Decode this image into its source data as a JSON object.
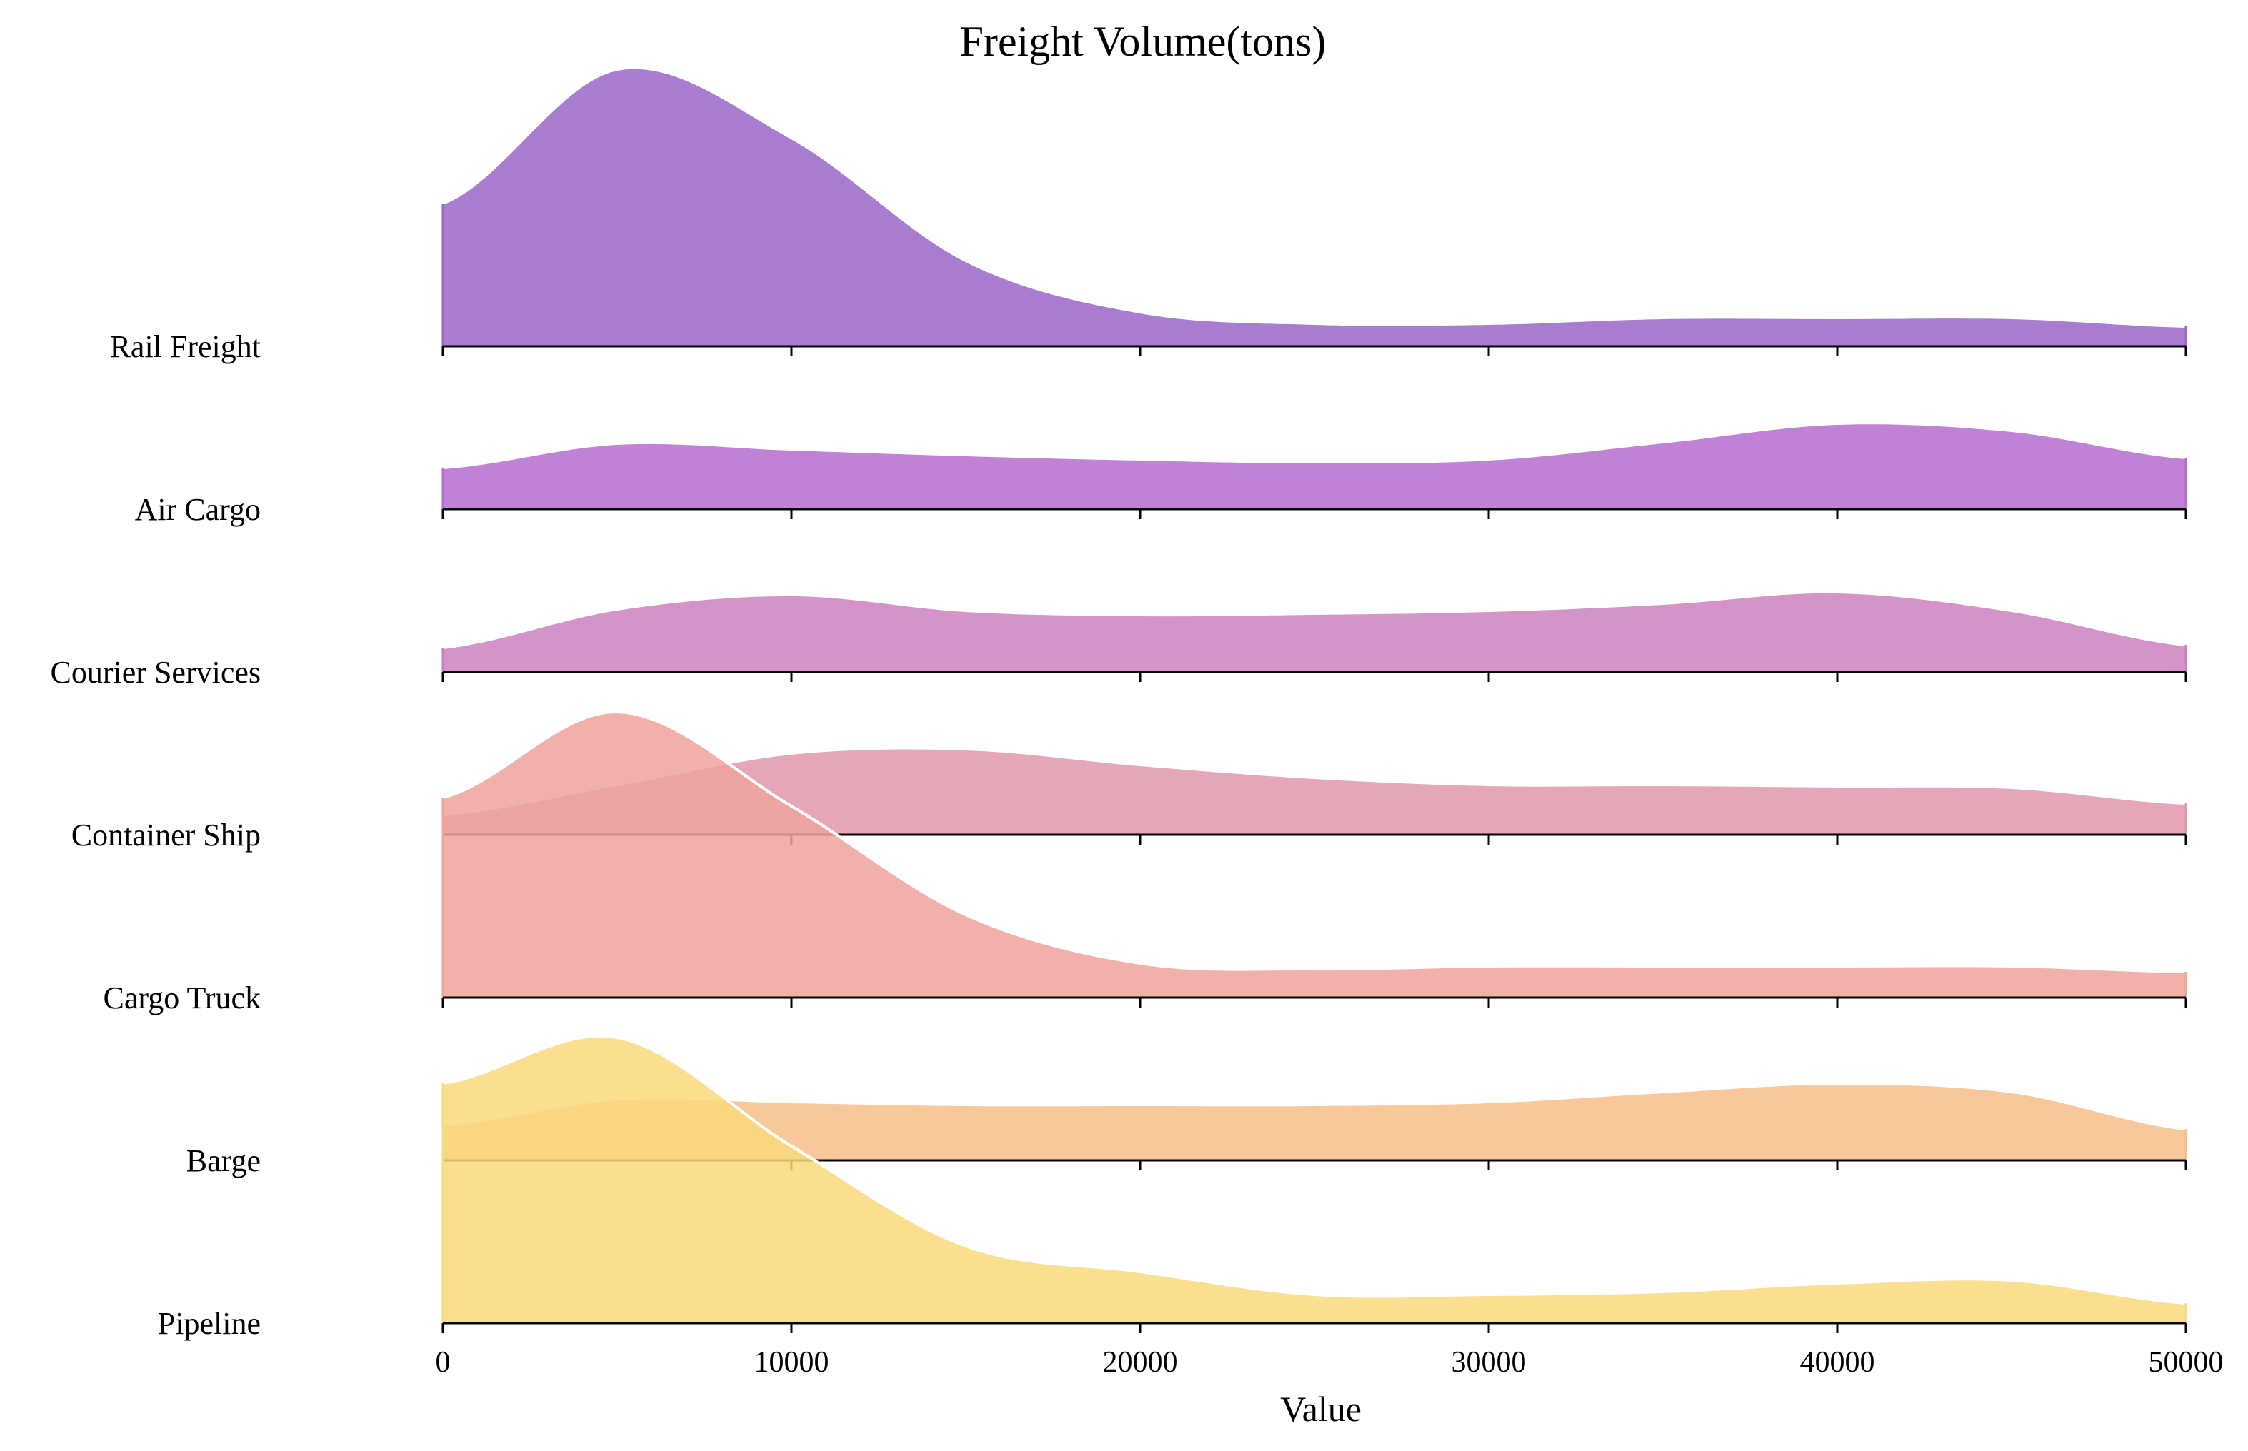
{
  "chart_data": {
    "type": "ridgeline",
    "title": "Freight Volume(tons)",
    "xlabel": "Value",
    "ylabel": "",
    "xlim": [
      0,
      50000
    ],
    "xticks": [
      0,
      10000,
      20000,
      30000,
      40000,
      50000
    ],
    "xtick_labels": [
      "0",
      "10000",
      "20000",
      "30000",
      "40000",
      "50000"
    ],
    "grid": false,
    "legend": "none",
    "density_sample_x": [
      0,
      5000,
      10000,
      15000,
      20000,
      25000,
      30000,
      35000,
      40000,
      45000,
      50000
    ],
    "series": [
      {
        "name": "Rail Freight",
        "color": "#9966c8",
        "density": [
          0.5,
          0.97,
          0.73,
          0.3,
          0.12,
          0.08,
          0.08,
          0.1,
          0.1,
          0.1,
          0.07
        ],
        "peak_scale": 1.0
      },
      {
        "name": "Air Cargo",
        "color": "#b56ccc",
        "density": [
          0.29,
          0.46,
          0.42,
          0.38,
          0.35,
          0.33,
          0.35,
          0.47,
          0.6,
          0.55,
          0.36
        ],
        "peak_scale": 0.5
      },
      {
        "name": "Courier Services",
        "color": "#cc80c0",
        "density": [
          0.17,
          0.44,
          0.54,
          0.43,
          0.4,
          0.41,
          0.43,
          0.48,
          0.56,
          0.43,
          0.19
        ],
        "peak_scale": 0.5
      },
      {
        "name": "Container Ship",
        "color": "#e096ab",
        "density": [
          0.14,
          0.35,
          0.57,
          0.6,
          0.49,
          0.4,
          0.35,
          0.35,
          0.34,
          0.33,
          0.22
        ],
        "peak_scale": 0.5
      },
      {
        "name": "Cargo Truck",
        "color": "#efa39b",
        "density": [
          0.7,
          1.0,
          0.67,
          0.29,
          0.12,
          0.1,
          0.11,
          0.11,
          0.11,
          0.11,
          0.09
        ],
        "peak_scale": 1.0
      },
      {
        "name": "Barge",
        "color": "#f7be8a",
        "density": [
          0.25,
          0.43,
          0.41,
          0.39,
          0.39,
          0.39,
          0.41,
          0.48,
          0.54,
          0.48,
          0.22
        ],
        "peak_scale": 0.5
      },
      {
        "name": "Pipeline",
        "color": "#f9d97c",
        "density": [
          0.84,
          1.0,
          0.62,
          0.27,
          0.18,
          0.1,
          0.1,
          0.11,
          0.14,
          0.15,
          0.07
        ],
        "peak_scale": 1.0
      }
    ]
  }
}
